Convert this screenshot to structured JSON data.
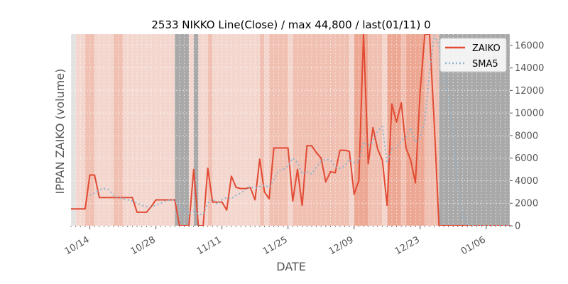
{
  "chart_data": {
    "type": "line",
    "title": "2533 NIKKO Line(Close) / max 44,800 / last(01/11) 0",
    "xlabel": "DATE",
    "ylabel": "IPPAN ZAIKO (volume)",
    "x_range": [
      "2018-10-10",
      "2019-01-11"
    ],
    "ylim": [
      0,
      17000
    ],
    "yticks": [
      0,
      2000,
      4000,
      6000,
      8000,
      10000,
      12000,
      14000,
      16000
    ],
    "ytick_labels": [
      "0",
      "2000",
      "4000",
      "6000",
      "8000",
      "10000",
      "12000",
      "14000",
      "16000"
    ],
    "xticks": [
      "2018-10-14",
      "2018-10-28",
      "2018-11-11",
      "2018-11-25",
      "2018-12-09",
      "2018-12-23",
      "2019-01-06"
    ],
    "xtick_labels": [
      "10/14",
      "10/28",
      "11/11",
      "11/25",
      "12/09",
      "12/23",
      "01/06"
    ],
    "grid": true,
    "legend_position": "upper right",
    "colors": {
      "zaiko": "#e24a33",
      "sma5": "#8eb4cf",
      "gray_band": "#a9a9a9",
      "light_band": "#f3d7cf",
      "mid_band": "#f0c0b2",
      "strong_band": "#eda894"
    },
    "series": [
      {
        "name": "ZAIKO",
        "style": "solid",
        "points": [
          [
            "2018-10-10",
            1500
          ],
          [
            "2018-10-11",
            1500
          ],
          [
            "2018-10-12",
            1500
          ],
          [
            "2018-10-13",
            1500
          ],
          [
            "2018-10-14",
            4500
          ],
          [
            "2018-10-15",
            4500
          ],
          [
            "2018-10-16",
            2500
          ],
          [
            "2018-10-17",
            2500
          ],
          [
            "2018-10-18",
            2500
          ],
          [
            "2018-10-19",
            2500
          ],
          [
            "2018-10-20",
            2500
          ],
          [
            "2018-10-21",
            2500
          ],
          [
            "2018-10-22",
            2500
          ],
          [
            "2018-10-23",
            2500
          ],
          [
            "2018-10-24",
            1200
          ],
          [
            "2018-10-25",
            1200
          ],
          [
            "2018-10-26",
            1200
          ],
          [
            "2018-10-27",
            1700
          ],
          [
            "2018-10-28",
            2300
          ],
          [
            "2018-10-29",
            2300
          ],
          [
            "2018-10-30",
            2300
          ],
          [
            "2018-10-31",
            2300
          ],
          [
            "2018-11-01",
            2300
          ],
          [
            "2018-11-02",
            0
          ],
          [
            "2018-11-03",
            0
          ],
          [
            "2018-11-04",
            0
          ],
          [
            "2018-11-05",
            5000
          ],
          [
            "2018-11-06",
            0
          ],
          [
            "2018-11-07",
            0
          ],
          [
            "2018-11-08",
            5100
          ],
          [
            "2018-11-09",
            2100
          ],
          [
            "2018-11-10",
            2100
          ],
          [
            "2018-11-11",
            2100
          ],
          [
            "2018-11-12",
            1400
          ],
          [
            "2018-11-13",
            4400
          ],
          [
            "2018-11-14",
            3400
          ],
          [
            "2018-11-15",
            3300
          ],
          [
            "2018-11-16",
            3300
          ],
          [
            "2018-11-17",
            3400
          ],
          [
            "2018-11-18",
            2300
          ],
          [
            "2018-11-19",
            5900
          ],
          [
            "2018-11-20",
            3000
          ],
          [
            "2018-11-21",
            2400
          ],
          [
            "2018-11-22",
            6900
          ],
          [
            "2018-11-23",
            6900
          ],
          [
            "2018-11-24",
            6900
          ],
          [
            "2018-11-25",
            6900
          ],
          [
            "2018-11-26",
            2200
          ],
          [
            "2018-11-27",
            5000
          ],
          [
            "2018-11-28",
            1800
          ],
          [
            "2018-11-29",
            7100
          ],
          [
            "2018-11-30",
            7100
          ],
          [
            "2018-12-01",
            6500
          ],
          [
            "2018-12-02",
            6000
          ],
          [
            "2018-12-03",
            3900
          ],
          [
            "2018-12-04",
            4800
          ],
          [
            "2018-12-05",
            4700
          ],
          [
            "2018-12-06",
            6700
          ],
          [
            "2018-12-07",
            6700
          ],
          [
            "2018-12-08",
            6600
          ],
          [
            "2018-12-09",
            2800
          ],
          [
            "2018-12-10",
            4000
          ],
          [
            "2018-12-11",
            17000
          ],
          [
            "2018-12-12",
            5500
          ],
          [
            "2018-12-13",
            8700
          ],
          [
            "2018-12-14",
            6800
          ],
          [
            "2018-12-15",
            5800
          ],
          [
            "2018-12-16",
            1800
          ],
          [
            "2018-12-17",
            10800
          ],
          [
            "2018-12-18",
            9200
          ],
          [
            "2018-12-19",
            10900
          ],
          [
            "2018-12-20",
            6900
          ],
          [
            "2018-12-21",
            5800
          ],
          [
            "2018-12-22",
            3800
          ],
          [
            "2018-12-23",
            11900
          ],
          [
            "2018-12-24",
            17000
          ],
          [
            "2018-12-25",
            17000
          ],
          [
            "2018-12-26",
            9000
          ],
          [
            "2018-12-27",
            0
          ],
          [
            "2018-12-28",
            0
          ],
          [
            "2019-01-11",
            0
          ]
        ]
      },
      {
        "name": "SMA5",
        "style": "dotted",
        "points": [
          [
            "2018-10-14",
            2700
          ],
          [
            "2018-10-15",
            2900
          ],
          [
            "2018-10-16",
            3200
          ],
          [
            "2018-10-17",
            3300
          ],
          [
            "2018-10-18",
            3200
          ],
          [
            "2018-10-19",
            2700
          ],
          [
            "2018-10-20",
            2500
          ],
          [
            "2018-10-21",
            2400
          ],
          [
            "2018-10-22",
            2300
          ],
          [
            "2018-10-23",
            2200
          ],
          [
            "2018-10-24",
            2000
          ],
          [
            "2018-10-25",
            1800
          ],
          [
            "2018-10-26",
            1700
          ],
          [
            "2018-10-27",
            1700
          ],
          [
            "2018-10-28",
            1800
          ],
          [
            "2018-10-29",
            2000
          ],
          [
            "2018-10-30",
            2200
          ],
          [
            "2018-10-31",
            2300
          ],
          [
            "2018-11-01",
            2300
          ],
          [
            "2018-11-02",
            1800
          ],
          [
            "2018-11-03",
            1400
          ],
          [
            "2018-11-04",
            1100
          ],
          [
            "2018-11-05",
            1300
          ],
          [
            "2018-11-06",
            1000
          ],
          [
            "2018-11-07",
            1000
          ],
          [
            "2018-11-08",
            2000
          ],
          [
            "2018-11-09",
            2400
          ],
          [
            "2018-11-10",
            1900
          ],
          [
            "2018-11-11",
            2300
          ],
          [
            "2018-11-12",
            2500
          ],
          [
            "2018-11-13",
            2400
          ],
          [
            "2018-11-14",
            2700
          ],
          [
            "2018-11-15",
            2900
          ],
          [
            "2018-11-16",
            3200
          ],
          [
            "2018-11-17",
            3500
          ],
          [
            "2018-11-18",
            3300
          ],
          [
            "2018-11-19",
            3500
          ],
          [
            "2018-11-20",
            3600
          ],
          [
            "2018-11-21",
            3400
          ],
          [
            "2018-11-22",
            4100
          ],
          [
            "2018-11-23",
            4900
          ],
          [
            "2018-11-24",
            5000
          ],
          [
            "2018-11-25",
            5300
          ],
          [
            "2018-11-26",
            6000
          ],
          [
            "2018-11-27",
            5600
          ],
          [
            "2018-11-28",
            4600
          ],
          [
            "2018-11-29",
            4800
          ],
          [
            "2018-11-30",
            4600
          ],
          [
            "2018-12-01",
            5200
          ],
          [
            "2018-12-02",
            5700
          ],
          [
            "2018-12-03",
            5900
          ],
          [
            "2018-12-04",
            5800
          ],
          [
            "2018-12-05",
            5200
          ],
          [
            "2018-12-06",
            5100
          ],
          [
            "2018-12-07",
            5300
          ],
          [
            "2018-12-08",
            5900
          ],
          [
            "2018-12-09",
            5600
          ],
          [
            "2018-12-10",
            5700
          ],
          [
            "2018-12-11",
            7400
          ],
          [
            "2018-12-12",
            7100
          ],
          [
            "2018-12-13",
            7500
          ],
          [
            "2018-12-14",
            8400
          ],
          [
            "2018-12-15",
            8800
          ],
          [
            "2018-12-16",
            5600
          ],
          [
            "2018-12-17",
            6800
          ],
          [
            "2018-12-18",
            6900
          ],
          [
            "2018-12-19",
            7500
          ],
          [
            "2018-12-20",
            7900
          ],
          [
            "2018-12-21",
            8700
          ],
          [
            "2018-12-22",
            7400
          ],
          [
            "2018-12-23",
            7800
          ],
          [
            "2018-12-24",
            9300
          ],
          [
            "2018-12-25",
            13700
          ],
          [
            "2018-12-26",
            16900
          ],
          [
            "2018-12-27",
            16000
          ],
          [
            "2018-12-28",
            14000
          ],
          [
            "2018-12-29",
            11500
          ],
          [
            "2018-12-30",
            8000
          ],
          [
            "2018-12-31",
            3500
          ],
          [
            "2019-01-01",
            1000
          ],
          [
            "2019-01-02",
            0
          ],
          [
            "2019-01-11",
            0
          ]
        ]
      }
    ],
    "background_bands": [
      {
        "from": "2018-10-10",
        "to": "2018-10-11",
        "level": "gray_light"
      },
      {
        "from": "2018-10-11",
        "to": "2018-10-13",
        "level": "light"
      },
      {
        "from": "2018-10-13",
        "to": "2018-10-15",
        "level": "mid"
      },
      {
        "from": "2018-10-15",
        "to": "2018-10-19",
        "level": "light"
      },
      {
        "from": "2018-10-19",
        "to": "2018-10-21",
        "level": "mid"
      },
      {
        "from": "2018-10-21",
        "to": "2018-11-01",
        "level": "light"
      },
      {
        "from": "2018-11-01",
        "to": "2018-11-04",
        "level": "gray"
      },
      {
        "from": "2018-11-04",
        "to": "2018-11-05",
        "level": "light"
      },
      {
        "from": "2018-11-05",
        "to": "2018-11-06",
        "level": "gray"
      },
      {
        "from": "2018-11-06",
        "to": "2018-11-08",
        "level": "light"
      },
      {
        "from": "2018-11-08",
        "to": "2018-11-09",
        "level": "mid"
      },
      {
        "from": "2018-11-09",
        "to": "2018-11-19",
        "level": "light"
      },
      {
        "from": "2018-11-19",
        "to": "2018-11-20",
        "level": "mid"
      },
      {
        "from": "2018-11-20",
        "to": "2018-11-21",
        "level": "light"
      },
      {
        "from": "2018-11-21",
        "to": "2018-11-25",
        "level": "mid"
      },
      {
        "from": "2018-11-25",
        "to": "2018-11-26",
        "level": "light"
      },
      {
        "from": "2018-11-26",
        "to": "2018-11-28",
        "level": "mid"
      },
      {
        "from": "2018-11-28",
        "to": "2018-12-08",
        "level": "mid"
      },
      {
        "from": "2018-12-08",
        "to": "2018-12-09",
        "level": "light"
      },
      {
        "from": "2018-12-09",
        "to": "2018-12-12",
        "level": "strong"
      },
      {
        "from": "2018-12-12",
        "to": "2018-12-15",
        "level": "mid"
      },
      {
        "from": "2018-12-15",
        "to": "2018-12-16",
        "level": "light"
      },
      {
        "from": "2018-12-16",
        "to": "2018-12-19",
        "level": "strong"
      },
      {
        "from": "2018-12-19",
        "to": "2018-12-20",
        "level": "mid"
      },
      {
        "from": "2018-12-20",
        "to": "2018-12-24",
        "level": "strong"
      },
      {
        "from": "2018-12-24",
        "to": "2018-12-27",
        "level": "mid"
      },
      {
        "from": "2018-12-27",
        "to": "2019-01-11",
        "level": "gray"
      }
    ]
  }
}
